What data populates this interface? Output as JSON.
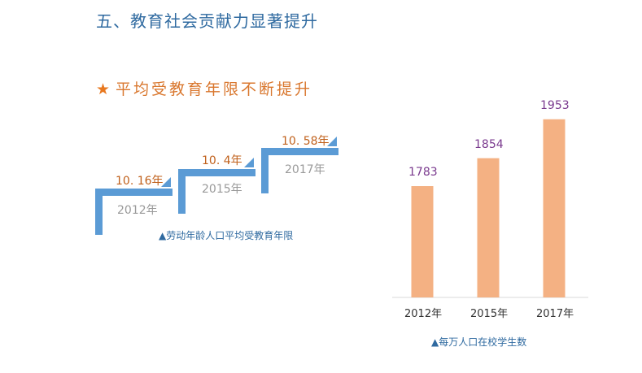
{
  "section_title": "五、教育社会贡献力显著提升",
  "sub_heading": {
    "icon": "star-icon",
    "text": "平均受教育年限不断提升"
  },
  "colors": {
    "title_blue": "#2f6aa0",
    "accent_orange": "#e8781f",
    "step_blue": "#5b9bd5",
    "bar_orange": "#f4b183",
    "value_purple": "#7a3a8e"
  },
  "chart_data": [
    {
      "type": "line",
      "style": "step",
      "categories": [
        "2012年",
        "2015年",
        "2017年"
      ],
      "values": [
        10.16,
        10.4,
        10.58
      ],
      "value_labels": [
        "10. 16年",
        "10. 4年",
        "10. 58年"
      ],
      "caption": "▲劳动年龄人口平均受教育年限"
    },
    {
      "type": "bar",
      "categories": [
        "2012年",
        "2015年",
        "2017年"
      ],
      "values": [
        1783,
        1854,
        1953
      ],
      "caption": "▲每万人口在校学生数"
    }
  ]
}
